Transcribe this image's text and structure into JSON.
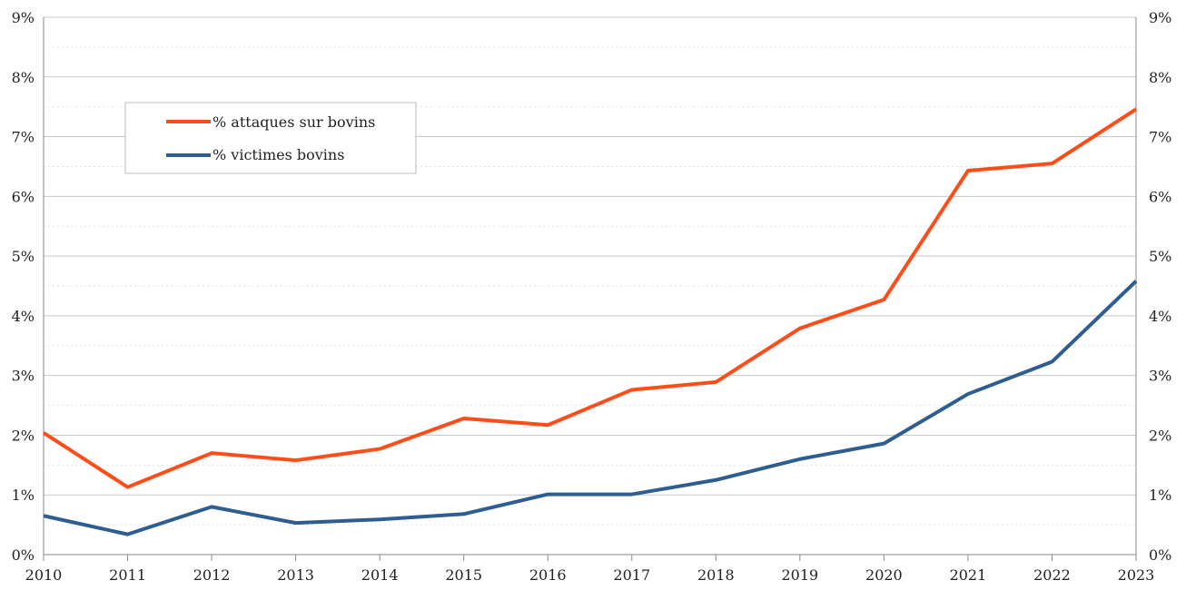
{
  "chart_data": {
    "type": "line",
    "x": [
      2010,
      2011,
      2012,
      2013,
      2014,
      2015,
      2016,
      2017,
      2018,
      2019,
      2020,
      2021,
      2022,
      2023
    ],
    "x_tick_labels": [
      "2010",
      "2011",
      "2012",
      "2013",
      "2014",
      "2015",
      "2016",
      "2017",
      "2018",
      "2019",
      "2020",
      "2021",
      "2022",
      "2023"
    ],
    "ylim": [
      0,
      9
    ],
    "y_tick_labels": [
      "0%",
      "1%",
      "2%",
      "3%",
      "4%",
      "5%",
      "6%",
      "7%",
      "8%",
      "9%"
    ],
    "y_right_tick_labels": [
      "0%",
      "1%",
      "2%",
      "3%",
      "4%",
      "5%",
      "6%",
      "7%",
      "8%",
      "9%"
    ],
    "grid": {
      "major": true,
      "minor_dotted": true
    },
    "legend_position": "top-left",
    "series": [
      {
        "name": "% attaques sur bovins",
        "color": "#ff4d1a",
        "values": [
          2.04,
          1.13,
          1.7,
          1.58,
          1.77,
          2.28,
          2.17,
          2.76,
          2.89,
          3.79,
          4.27,
          6.43,
          6.55,
          7.46
        ]
      },
      {
        "name": "% victimes bovins",
        "color": "#2e5d92",
        "values": [
          0.65,
          0.34,
          0.8,
          0.53,
          0.59,
          0.68,
          1.01,
          1.01,
          1.25,
          1.6,
          1.86,
          2.69,
          3.23,
          4.58
        ]
      }
    ]
  }
}
